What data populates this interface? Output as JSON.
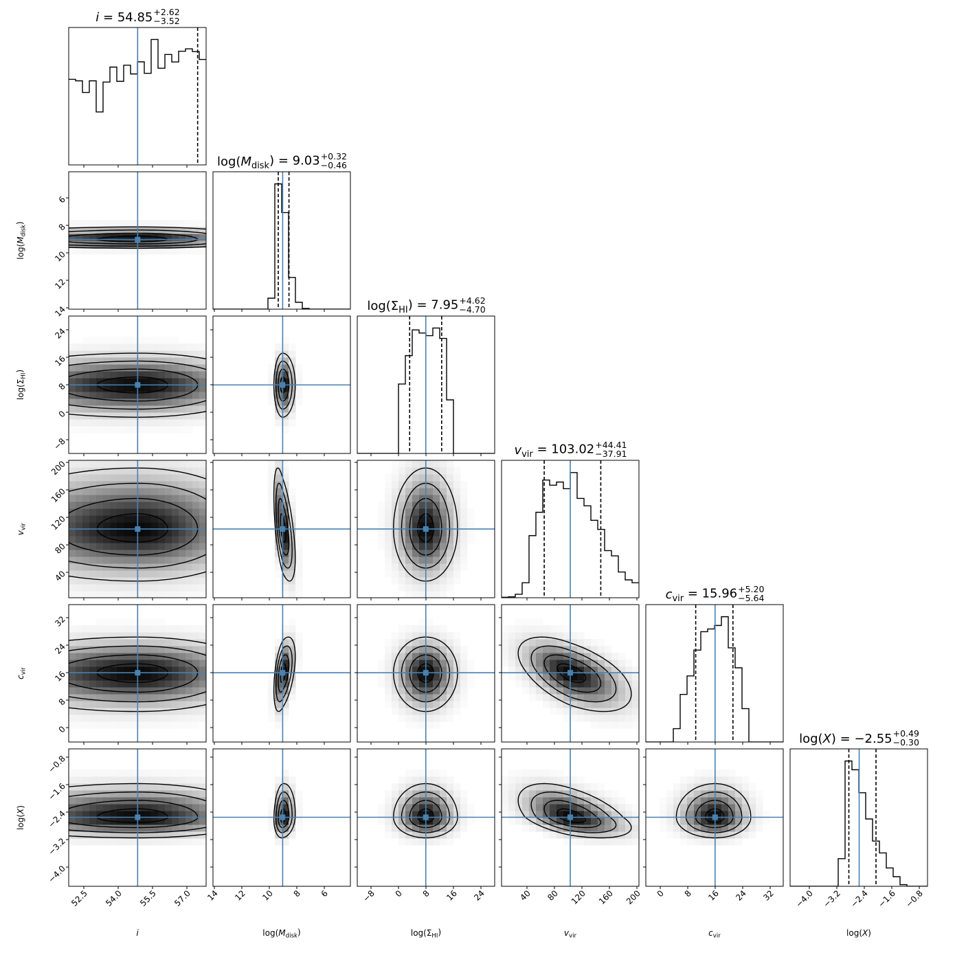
{
  "chart_data": {
    "type": "corner",
    "truth_color": "#4682b4",
    "contour_levels_sigma": [
      0.5,
      1.0,
      1.5,
      2.0
    ],
    "params": [
      {
        "id": "i",
        "label_segments": [
          {
            "t": "i",
            "italic": true
          }
        ],
        "title": {
          "value": "54.85",
          "plus": "+2.62",
          "minus": "−3.52"
        },
        "median": 54.85,
        "q16": 51.33,
        "q84": 57.47,
        "truth": 54.85,
        "range": [
          51.84,
          57.84
        ],
        "ticks": [
          52.5,
          54.0,
          55.5,
          57.0
        ],
        "tick_labels": [
          "52.5",
          "54.0",
          "55.5",
          "57.0"
        ],
        "hist": [
          68.5,
          67.3,
          58,
          67.3,
          42.4,
          66.3,
          78.3,
          66.9,
          79.8,
          72.8,
          82.5,
          73.3,
          100.4,
          77.4,
          88.4,
          82.4,
          91,
          92.9,
          90.7,
          84.4
        ]
      },
      {
        "id": "log_M_disk",
        "label_segments": [
          {
            "t": "log("
          },
          {
            "t": "M",
            "italic": true
          },
          {
            "t": "disk",
            "sub": true
          },
          {
            "t": ")"
          }
        ],
        "title": {
          "value": "9.03",
          "plus": "+0.32",
          "minus": "−0.46"
        },
        "median": 9.03,
        "q16": 8.57,
        "q84": 9.35,
        "truth": 9.03,
        "range": [
          14.1,
          4.1
        ],
        "ticks": [
          14,
          12,
          10,
          8,
          6
        ],
        "tick_labels": [
          "14",
          "12",
          "10",
          "8",
          "6"
        ],
        "hist": [
          0,
          0,
          0,
          0,
          0,
          0,
          0,
          0,
          8.8,
          100.3,
          77.3,
          25.4,
          5.5,
          0.6,
          0,
          0,
          0,
          0,
          0,
          0
        ]
      },
      {
        "id": "log_Sigma_HI",
        "label_segments": [
          {
            "t": "log(Σ"
          },
          {
            "t": "HI",
            "sub": true
          },
          {
            "t": ")"
          }
        ],
        "title": {
          "value": "7.95",
          "plus": "+4.62",
          "minus": "−4.70"
        },
        "median": 7.95,
        "q16": 3.25,
        "q84": 12.57,
        "truth": 7.95,
        "range": [
          -12,
          28
        ],
        "ticks": [
          -8,
          0,
          8,
          16,
          24
        ],
        "tick_labels": [
          "−8",
          "0",
          "8",
          "16",
          "24"
        ],
        "hist": [
          0,
          0,
          0,
          0,
          0,
          0,
          55.6,
          78.3,
          98.9,
          96.4,
          94.3,
          100.4,
          92.1,
          42.9,
          0,
          0,
          0,
          0,
          0,
          0
        ]
      },
      {
        "id": "v_vir",
        "label_segments": [
          {
            "t": "v",
            "italic": true
          },
          {
            "t": "vir",
            "sub": true
          }
        ],
        "title": {
          "value": "103.02",
          "plus": "+44.41",
          "minus": "−37.91"
        },
        "median": 103.02,
        "q16": 65.11,
        "q84": 147.43,
        "truth": 103.02,
        "range": [
          3,
          203
        ],
        "ticks": [
          40,
          80,
          120,
          160,
          200
        ],
        "tick_labels": [
          "40",
          "80",
          "120",
          "160",
          "200"
        ],
        "hist": [
          0.4,
          0.7,
          2.8,
          12,
          49.7,
          68.4,
          94.2,
          90.1,
          92.6,
          87.3,
          100.2,
          79.5,
          73.6,
          62,
          54.7,
          37.7,
          33.5,
          20.6,
          14.3,
          12
        ]
      },
      {
        "id": "c_vir",
        "label_segments": [
          {
            "t": "c",
            "italic": true
          },
          {
            "t": "vir",
            "sub": true
          }
        ],
        "title": {
          "value": "15.96",
          "plus": "+5.20",
          "minus": "−5.64"
        },
        "median": 15.96,
        "q16": 10.32,
        "q84": 21.16,
        "truth": 15.96,
        "range": [
          -4.2,
          35.8
        ],
        "ticks": [
          0,
          8,
          16,
          24,
          32
        ],
        "tick_labels": [
          "0",
          "8",
          "16",
          "24",
          "32"
        ],
        "hist": [
          0,
          0,
          0,
          0,
          10.7,
          38.1,
          52.9,
          73.6,
          88.3,
          90.5,
          93.3,
          100.3,
          75.4,
          59.4,
          26.7,
          0,
          0,
          0,
          0,
          0
        ]
      },
      {
        "id": "log_X",
        "label_segments": [
          {
            "t": "log("
          },
          {
            "t": "X",
            "italic": true
          },
          {
            "t": ")"
          }
        ],
        "title": {
          "value": "−2.55",
          "plus": "+0.49",
          "minus": "−0.30"
        },
        "median": -2.55,
        "q16": -2.85,
        "q84": -2.06,
        "truth": -2.55,
        "range": [
          -4.56,
          -0.56
        ],
        "ticks": [
          -4.0,
          -3.2,
          -2.4,
          -1.6,
          -0.8
        ],
        "tick_labels": [
          "−4.0",
          "−3.2",
          "−2.4",
          "−1.6",
          "−0.8"
        ],
        "hist": [
          0,
          0,
          0,
          0,
          0,
          0,
          0,
          22.1,
          100.3,
          93.3,
          74.9,
          53.9,
          36.2,
          26.7,
          14.7,
          7.7,
          1.3,
          0,
          0,
          0
        ]
      }
    ],
    "correlations": [
      {
        "x": "log_M_disk",
        "y": "v_vir",
        "rho": 0.55
      },
      {
        "x": "log_M_disk",
        "y": "c_vir",
        "rho": -0.45
      },
      {
        "x": "v_vir",
        "y": "c_vir",
        "rho": -0.55
      },
      {
        "x": "v_vir",
        "y": "log_X",
        "rho": -0.5
      },
      {
        "x": "log_M_disk",
        "y": "log_X",
        "rho": -0.1
      }
    ]
  }
}
